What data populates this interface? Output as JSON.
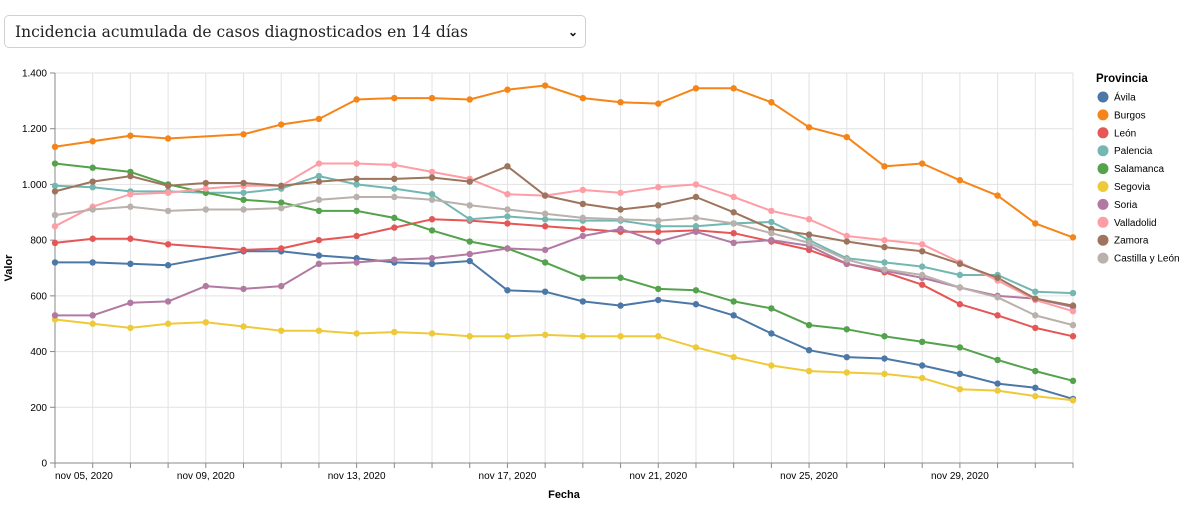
{
  "metric_select": {
    "selected": "Incidencia acumulada de casos diagnosticados en 14 días",
    "icon": "chevron-down-icon"
  },
  "chart_data": {
    "type": "line",
    "title": "",
    "xlabel": "Fecha",
    "ylabel": "Valor",
    "ylim": [
      0,
      1400
    ],
    "y_ticks": [
      0,
      200,
      400,
      600,
      800,
      1000,
      1200,
      1400
    ],
    "y_tick_labels": [
      "0",
      "200",
      "400",
      "600",
      "800",
      "1.000",
      "1.200",
      "1.400"
    ],
    "x_tick_labels": [
      {
        "label": "nov 05, 2020",
        "date_index": 0
      },
      {
        "label": "nov 09, 2020",
        "date_index": 4
      },
      {
        "label": "nov 13, 2020",
        "date_index": 8
      },
      {
        "label": "nov 17, 2020",
        "date_index": 12
      },
      {
        "label": "nov 21, 2020",
        "date_index": 16
      },
      {
        "label": "nov 25, 2020",
        "date_index": 20
      },
      {
        "label": "nov 29, 2020",
        "date_index": 24
      }
    ],
    "grid": true,
    "legend": {
      "title": "Provincia",
      "position": "right"
    },
    "x": [
      "2020-11-05",
      "2020-11-06",
      "2020-11-07",
      "2020-11-08",
      "2020-11-09",
      "2020-11-10",
      "2020-11-11",
      "2020-11-12",
      "2020-11-13",
      "2020-11-14",
      "2020-11-15",
      "2020-11-16",
      "2020-11-17",
      "2020-11-18",
      "2020-11-19",
      "2020-11-20",
      "2020-11-21",
      "2020-11-22",
      "2020-11-23",
      "2020-11-24",
      "2020-11-25",
      "2020-11-26",
      "2020-11-27",
      "2020-11-28",
      "2020-11-29",
      "2020-11-30",
      "2020-12-01",
      "2020-12-02"
    ],
    "series": [
      {
        "name": "Ávila",
        "color": "#4c78a8",
        "values": [
          720,
          720,
          715,
          710,
          null,
          760,
          760,
          745,
          735,
          720,
          715,
          725,
          620,
          615,
          580,
          565,
          585,
          570,
          530,
          465,
          405,
          380,
          375,
          350,
          320,
          285,
          270,
          230
        ]
      },
      {
        "name": "Burgos",
        "color": "#f58518",
        "values": [
          1135,
          1155,
          1175,
          1165,
          null,
          1180,
          1215,
          1235,
          1305,
          1310,
          1310,
          1305,
          1340,
          1355,
          1310,
          1295,
          1290,
          1345,
          1345,
          1295,
          1205,
          1170,
          1065,
          1075,
          1015,
          960,
          860,
          810
        ]
      },
      {
        "name": "León",
        "color": "#e45756",
        "values": [
          790,
          805,
          805,
          785,
          null,
          765,
          770,
          800,
          815,
          845,
          875,
          870,
          860,
          850,
          840,
          830,
          830,
          835,
          825,
          795,
          765,
          715,
          685,
          640,
          570,
          530,
          485,
          455
        ]
      },
      {
        "name": "Palencia",
        "color": "#72b7b2",
        "values": [
          995,
          990,
          975,
          975,
          970,
          970,
          985,
          1030,
          1000,
          985,
          965,
          875,
          885,
          875,
          870,
          870,
          850,
          850,
          860,
          865,
          800,
          735,
          720,
          705,
          675,
          675,
          615,
          610
        ]
      },
      {
        "name": "Salamanca",
        "color": "#54a24b",
        "values": [
          1075,
          1060,
          1045,
          1000,
          970,
          945,
          935,
          905,
          905,
          880,
          835,
          795,
          770,
          720,
          665,
          665,
          625,
          620,
          580,
          555,
          495,
          480,
          455,
          435,
          415,
          370,
          330,
          295
        ]
      },
      {
        "name": "Segovia",
        "color": "#eeca3b",
        "values": [
          515,
          500,
          485,
          500,
          505,
          490,
          475,
          475,
          465,
          470,
          465,
          455,
          455,
          460,
          455,
          455,
          455,
          415,
          380,
          350,
          330,
          325,
          320,
          305,
          265,
          260,
          240,
          225
        ]
      },
      {
        "name": "Soria",
        "color": "#b279a2",
        "values": [
          530,
          530,
          575,
          580,
          635,
          625,
          635,
          715,
          720,
          730,
          735,
          750,
          770,
          765,
          815,
          840,
          795,
          830,
          790,
          800,
          780,
          715,
          690,
          665,
          630,
          600,
          590,
          560
        ]
      },
      {
        "name": "Valladolid",
        "color": "#ff9da6",
        "values": [
          850,
          920,
          965,
          970,
          985,
          995,
          995,
          1075,
          1075,
          1070,
          1045,
          1020,
          965,
          960,
          980,
          970,
          990,
          1000,
          955,
          905,
          875,
          815,
          800,
          785,
          720,
          655,
          585,
          545
        ]
      },
      {
        "name": "Zamora",
        "color": "#9d755d",
        "values": [
          975,
          1010,
          1030,
          995,
          1005,
          1005,
          995,
          1010,
          1020,
          1020,
          1025,
          1010,
          1065,
          960,
          930,
          910,
          925,
          955,
          900,
          840,
          820,
          795,
          775,
          760,
          715,
          665,
          590,
          565
        ]
      },
      {
        "name": "Castilla y León",
        "color": "#bab0ac",
        "values": [
          890,
          910,
          920,
          905,
          910,
          910,
          915,
          945,
          955,
          955,
          945,
          925,
          910,
          895,
          880,
          875,
          870,
          880,
          860,
          825,
          790,
          730,
          695,
          675,
          630,
          595,
          530,
          495
        ]
      }
    ]
  }
}
